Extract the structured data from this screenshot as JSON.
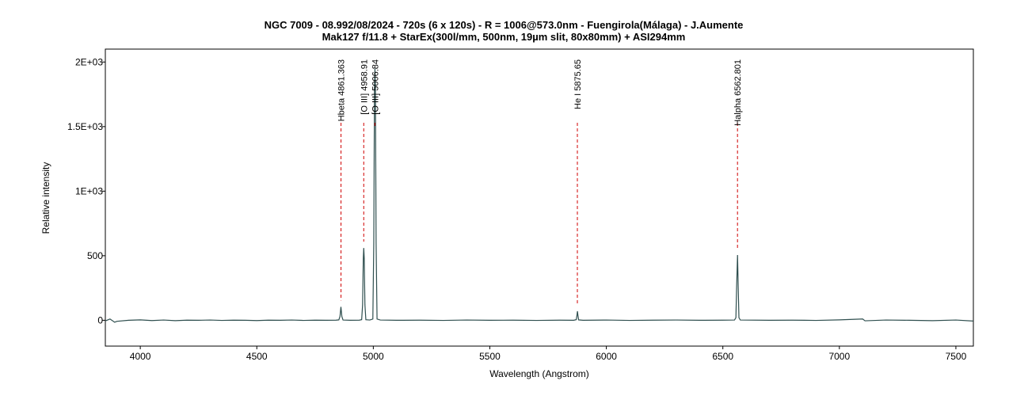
{
  "chart_data": {
    "type": "line",
    "title": "NGC 7009 - 08.992/08/2024 - 720s (6 x 120s) - R = 1006@573.0nm - Fuengirola(Málaga) - J.Aumente",
    "subtitle": "Mak127 f/11.8 + StarEx(300l/mm, 500nm, 19µm slit, 80x80mm) + ASI294mm",
    "x_label": "Wavelength (Angstrom)",
    "y_label": "Relative intensity",
    "xlim": [
      3850,
      7575
    ],
    "ylim": [
      -200,
      2100
    ],
    "xticks": [
      4000,
      4500,
      5000,
      5500,
      6000,
      6500,
      7000,
      7500
    ],
    "yticks": [
      0,
      500,
      {
        "value": 1000,
        "label": "1E+03"
      },
      {
        "value": 1500,
        "label": "1.5E+03"
      },
      {
        "value": 2000,
        "label": "2E+03"
      }
    ],
    "series": [
      {
        "color": "#2f4f4f",
        "x": [
          3850,
          3870,
          3890,
          3900,
          3950,
          4000,
          4050,
          4100,
          4150,
          4200,
          4250,
          4300,
          4350,
          4400,
          4450,
          4500,
          4550,
          4600,
          4650,
          4700,
          4750,
          4800,
          4840,
          4852,
          4857,
          4861,
          4865,
          4870,
          4900,
          4940,
          4950,
          4954,
          4957,
          4959,
          4961,
          4964,
          4968,
          4985,
          4998,
          5002,
          5005,
          5007,
          5009,
          5012,
          5016,
          5030,
          5100,
          5200,
          5300,
          5400,
          5500,
          5600,
          5700,
          5800,
          5860,
          5871,
          5874,
          5876,
          5878,
          5881,
          5900,
          6000,
          6100,
          6200,
          6300,
          6400,
          6500,
          6550,
          6556,
          6559,
          6563,
          6566,
          6569,
          6575,
          6700,
          6800,
          6900,
          7000,
          7100,
          7110,
          7200,
          7300,
          7400,
          7500,
          7575
        ],
        "values": [
          -5,
          10,
          -15,
          -8,
          0,
          3,
          -2,
          2,
          -3,
          1,
          0,
          2,
          -1,
          1,
          0,
          -2,
          1,
          0,
          2,
          -1,
          1,
          0,
          1,
          3,
          30,
          104,
          30,
          2,
          0,
          1,
          5,
          120,
          480,
          560,
          480,
          120,
          4,
          2,
          10,
          600,
          1800,
          1950,
          1800,
          600,
          10,
          2,
          0,
          1,
          -1,
          2,
          0,
          1,
          -1,
          1,
          0,
          5,
          40,
          70,
          40,
          3,
          0,
          2,
          -1,
          1,
          2,
          0,
          1,
          2,
          20,
          250,
          505,
          250,
          20,
          2,
          0,
          1,
          -1,
          3,
          10,
          -4,
          2,
          0,
          -3,
          2,
          -6
        ]
      }
    ],
    "annotations": [
      {
        "x": 4861.363,
        "text": "Hbeta 4861.363"
      },
      {
        "x": 4958.91,
        "text": "[O III] 4958.91"
      },
      {
        "x": 5006.84,
        "text": "[O III] 5006.84"
      },
      {
        "x": 5875.65,
        "text": "He I 5875.65"
      },
      {
        "x": 6562.801,
        "text": "Halpha 6562.801"
      }
    ],
    "annotation_color": "#d00000"
  }
}
